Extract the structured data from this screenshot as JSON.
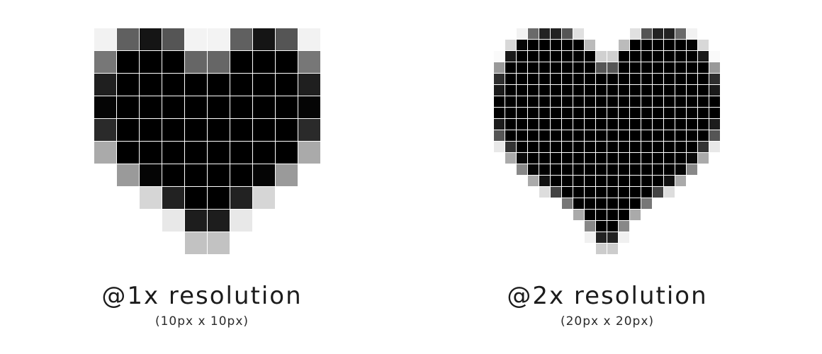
{
  "figures": [
    {
      "title": "@1x resolution",
      "subtitle": "(10px x 10px)",
      "size": 10,
      "pixels": [
        "#f2f2f2 #606060 #151515 #555555 #f3f3f3 #f3f3f3 #606060 #151515 #555555 #f2f2f2",
        "#777777 #000000 #000000 #000000 #666666 #666666 #000000 #000000 #000000 #777777",
        "#1f1f1f #000000 #000000 #000000 #000000 #000000 #000000 #000000 #000000 #1f1f1f",
        "#050505 #000000 #000000 #000000 #000000 #000000 #000000 #000000 #000000 #050505",
        "#2a2a2a #000000 #000000 #000000 #000000 #000000 #000000 #000000 #000000 #2a2a2a",
        "#aaaaaa #000000 #000000 #000000 #000000 #000000 #000000 #000000 #000000 #aaaaaa",
        "#ffffff #9a9a9a #050505 #000000 #000000 #000000 #000000 #050505 #9a9a9a #ffffff",
        "#ffffff #ffffff #d6d6d6 #222222 #000000 #000000 #222222 #d6d6d6 #ffffff #ffffff",
        "#ffffff #ffffff #ffffff #e8e8e8 #1d1d1d #1d1d1d #e8e8e8 #ffffff #ffffff #ffffff",
        "#ffffff #ffffff #ffffff #ffffff #c2c2c2 #c2c2c2 #ffffff #ffffff #ffffff #ffffff"
      ]
    },
    {
      "title": "@2x resolution",
      "subtitle": "(20px x 20px)",
      "size": 20,
      "pixels": [
        "#ffffff #ffffff #f2f2f2 #6a6a6a #222222 #222222 #555555 #e0e0e0 #ffffff #ffffff #ffffff #ffffff #e0e0e0 #555555 #222222 #222222 #6a6a6a #f2f2f2 #ffffff #ffffff",
        "#ffffff #d8d8d8 #050505 #000000 #000000 #000000 #000000 #000000 #bbbbbb #ffffff #ffffff #bbbbbb #000000 #000000 #000000 #000000 #000000 #050505 #d8d8d8 #ffffff",
        "#fafafa #1a1a1a #000000 #000000 #000000 #000000 #000000 #000000 #000000 #d0d0d0 #d0d0d0 #000000 #000000 #000000 #000000 #000000 #000000 #000000 #1a1a1a #fafafa",
        "#999999 #000000 #000000 #000000 #000000 #000000 #000000 #000000 #000000 #555555 #555555 #000000 #000000 #000000 #000000 #000000 #000000 #000000 #000000 #999999",
        "#2e2e2e #000000 #000000 #000000 #000000 #000000 #000000 #000000 #000000 #000000 #000000 #000000 #000000 #000000 #000000 #000000 #000000 #000000 #000000 #2e2e2e",
        "#1a1a1a #000000 #000000 #000000 #000000 #000000 #000000 #000000 #000000 #000000 #000000 #000000 #000000 #000000 #000000 #000000 #000000 #000000 #000000 #1a1a1a",
        "#000000 #000000 #000000 #000000 #000000 #000000 #000000 #000000 #000000 #000000 #000000 #000000 #000000 #000000 #000000 #000000 #000000 #000000 #000000 #000000",
        "#000000 #000000 #000000 #000000 #000000 #000000 #000000 #000000 #000000 #000000 #000000 #000000 #000000 #000000 #000000 #000000 #000000 #000000 #000000 #000000",
        "#1c1c1c #000000 #000000 #000000 #000000 #000000 #000000 #000000 #000000 #000000 #000000 #000000 #000000 #000000 #000000 #000000 #000000 #000000 #000000 #1c1c1c",
        "#555555 #000000 #000000 #000000 #000000 #000000 #000000 #000000 #000000 #000000 #000000 #000000 #000000 #000000 #000000 #000000 #000000 #000000 #000000 #555555",
        "#e8e8e8 #333333 #000000 #000000 #000000 #000000 #000000 #000000 #000000 #000000 #000000 #000000 #000000 #000000 #000000 #000000 #000000 #000000 #333333 #e8e8e8",
        "#ffffff #aaaaaa #0a0a0a #000000 #000000 #000000 #000000 #000000 #000000 #000000 #000000 #000000 #000000 #000000 #000000 #000000 #000000 #0a0a0a #aaaaaa #ffffff",
        "#ffffff #ffffff #888888 #050505 #000000 #000000 #000000 #000000 #000000 #000000 #000000 #000000 #000000 #000000 #000000 #000000 #050505 #888888 #ffffff #ffffff",
        "#ffffff #ffffff #ffffff #aaaaaa #111111 #000000 #000000 #000000 #000000 #000000 #000000 #000000 #000000 #000000 #000000 #111111 #aaaaaa #ffffff #ffffff #ffffff",
        "#ffffff #ffffff #ffffff #ffffff #dddddd #444444 #000000 #000000 #000000 #000000 #000000 #000000 #000000 #000000 #444444 #dddddd #ffffff #ffffff #ffffff #ffffff",
        "#ffffff #ffffff #ffffff #ffffff #ffffff #ffffff #777777 #000000 #000000 #000000 #000000 #000000 #000000 #777777 #ffffff #ffffff #ffffff #ffffff #ffffff #ffffff",
        "#ffffff #ffffff #ffffff #ffffff #ffffff #ffffff #ffffff #aaaaaa #000000 #000000 #000000 #000000 #aaaaaa #ffffff #ffffff #ffffff #ffffff #ffffff #ffffff #ffffff",
        "#ffffff #ffffff #ffffff #ffffff #ffffff #ffffff #ffffff #ffffff #888888 #000000 #000000 #888888 #ffffff #ffffff #ffffff #ffffff #ffffff #ffffff #ffffff #ffffff",
        "#ffffff #ffffff #ffffff #ffffff #ffffff #ffffff #ffffff #ffffff #f0f0f0 #222222 #222222 #f0f0f0 #ffffff #ffffff #ffffff #ffffff #ffffff #ffffff #ffffff #ffffff",
        "#ffffff #ffffff #ffffff #ffffff #ffffff #ffffff #ffffff #ffffff #ffffff #cccccc #cccccc #ffffff #ffffff #ffffff #ffffff #ffffff #ffffff #ffffff #ffffff #ffffff"
      ]
    }
  ]
}
